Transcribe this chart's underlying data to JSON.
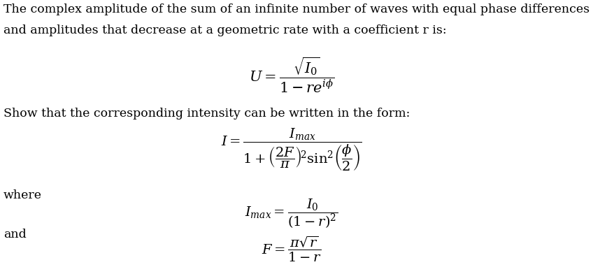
{
  "line1": "The complex amplitude of the sum of an infinite number of waves with equal phase differences",
  "line2": "and amplitudes that decrease at a geometric rate with a coefficient r is:",
  "eq1": "$U = \\dfrac{\\sqrt{I_0}}{1 - re^{i\\phi}}$",
  "text2": "Show that the corresponding intensity can be written in the form:",
  "eq2": "$I = \\dfrac{I_{max}}{1 + \\left(\\dfrac{2F}{\\pi}\\right)^{\\!2} \\sin^{2}\\!\\left(\\dfrac{\\phi}{2}\\right)}$",
  "text3": "where",
  "eq3": "$I_{max} = \\dfrac{I_0}{(1-r)^2}$",
  "text4": "and",
  "eq4": "$F = \\dfrac{\\pi\\sqrt{r}}{1 - r}$",
  "bg_color": "#ffffff",
  "text_color": "#000000",
  "fs_body": 12.5,
  "fs_eq": 14
}
